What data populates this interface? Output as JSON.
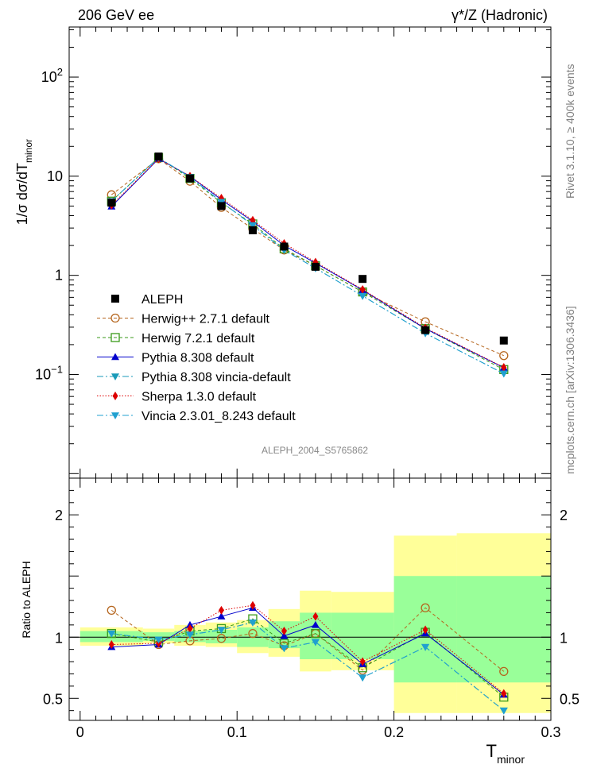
{
  "header": {
    "left": "206 GeV ee",
    "right": "γ*/Z (Hadronic)"
  },
  "side": {
    "rivet": "Rivet 3.1.10, ≥ 400k events",
    "source": "mcplots.cern.ch [arXiv:1306.3436]"
  },
  "analysis_id": "ALEPH_2004_S5765862",
  "colors": {
    "data": "#000000",
    "herwigpp": "#b5651d",
    "herwig7": "#3a9a1a",
    "pythia": "#0000cc",
    "pythia_vincia": "#1a9ab8",
    "sherpa": "#dd0000",
    "vincia": "#20a0d0",
    "band_outer": "#ffff99",
    "band_inner": "#99ff99"
  },
  "chart_data": [
    {
      "type": "line",
      "panel": "main",
      "ylabel": "1/σ  dσ/dT",
      "ylabel_sub": "minor",
      "yscale": "log",
      "ylim": [
        0.009,
        320
      ],
      "xlim": [
        -0.007,
        0.3
      ],
      "y_ticks": [
        {
          "value": 0.1,
          "base": "10",
          "exp": "−1"
        },
        {
          "value": 1,
          "base": "1",
          "exp": ""
        },
        {
          "value": 10,
          "base": "10",
          "exp": ""
        },
        {
          "value": 100,
          "base": "10",
          "exp": "2"
        }
      ],
      "x": [
        0.02,
        0.05,
        0.07,
        0.09,
        0.11,
        0.13,
        0.15,
        0.18,
        0.22,
        0.27
      ],
      "data_series": {
        "name": "ALEPH",
        "values": [
          5.4,
          15.8,
          9.5,
          5.0,
          2.85,
          1.95,
          1.22,
          0.92,
          0.28,
          0.22
        ]
      },
      "series": [
        {
          "name": "Herwig++ 2.7.1 default",
          "key": "herwigpp",
          "marker": "open-circle",
          "dash": "4,3",
          "values": [
            6.5,
            15.0,
            8.9,
            4.85,
            2.95,
            1.8,
            1.25,
            0.68,
            0.34,
            0.155
          ]
        },
        {
          "name": "Herwig 7.2.1 default",
          "key": "herwig7",
          "marker": "open-square",
          "dash": "4,3",
          "values": [
            5.6,
            15.4,
            9.5,
            5.4,
            3.3,
            1.85,
            1.25,
            0.68,
            0.29,
            0.112
          ]
        },
        {
          "name": "Pythia 8.308 default",
          "key": "pythia",
          "marker": "triangle-up",
          "dash": "",
          "values": [
            4.95,
            15.0,
            10.0,
            5.8,
            3.5,
            2.0,
            1.33,
            0.71,
            0.29,
            0.117
          ]
        },
        {
          "name": "Pythia 8.308 vincia-default",
          "key": "pythia_vincia",
          "marker": "triangle-down",
          "dash": "8,3,2,3",
          "values": [
            5.6,
            15.4,
            9.8,
            5.5,
            3.2,
            1.8,
            1.18,
            0.62,
            0.26,
            0.102
          ]
        },
        {
          "name": "Sherpa 1.3.0 default",
          "key": "sherpa",
          "marker": "diamond",
          "dash": "1.5,2",
          "values": [
            5.1,
            15.0,
            10.0,
            6.0,
            3.6,
            2.1,
            1.36,
            0.72,
            0.295,
            0.118
          ]
        },
        {
          "name": "Vincia 2.3.01_8.243 default",
          "key": "vincia",
          "marker": "triangle-down",
          "dash": "8,3,2,3",
          "values": [
            5.6,
            15.4,
            9.8,
            5.5,
            3.2,
            1.8,
            1.18,
            0.62,
            0.26,
            0.102
          ]
        }
      ]
    },
    {
      "type": "line",
      "panel": "ratio",
      "ylabel": "Ratio to ALEPH",
      "xlabel": "T",
      "xlabel_sub": "minor",
      "ylim": [
        0.32,
        2.3
      ],
      "xlim": [
        -0.007,
        0.3
      ],
      "y_ticks": [
        0.5,
        1,
        2
      ],
      "y_tick_labels": [
        "0.5",
        "1",
        "2"
      ],
      "x_ticks": [
        0,
        0.1,
        0.2,
        0.3
      ],
      "x_tick_labels": [
        "0",
        "0.1",
        "0.2",
        "0.3"
      ],
      "x": [
        0.02,
        0.05,
        0.07,
        0.09,
        0.11,
        0.13,
        0.15,
        0.18,
        0.22,
        0.27
      ],
      "bin_edges": [
        0,
        0.04,
        0.06,
        0.08,
        0.1,
        0.12,
        0.14,
        0.16,
        0.2,
        0.24,
        0.3
      ],
      "band_outer": [
        [
          0.93,
          1.08
        ],
        [
          0.95,
          1.07
        ],
        [
          0.93,
          1.1
        ],
        [
          0.92,
          1.12
        ],
        [
          0.87,
          1.14
        ],
        [
          0.84,
          1.23
        ],
        [
          0.72,
          1.38
        ],
        [
          0.73,
          1.37
        ],
        [
          0.38,
          1.83
        ],
        [
          0.38,
          1.85
        ]
      ],
      "band_inner": [
        [
          0.96,
          1.05
        ],
        [
          0.97,
          1.04
        ],
        [
          0.96,
          1.05
        ],
        [
          0.95,
          1.06
        ],
        [
          0.92,
          1.08
        ],
        [
          0.91,
          1.13
        ],
        [
          0.82,
          1.2
        ],
        [
          0.82,
          1.2
        ],
        [
          0.63,
          1.5
        ],
        [
          0.63,
          1.5
        ]
      ],
      "series": [
        {
          "name": "Herwig++ 2.7.1 default",
          "key": "herwigpp",
          "marker": "open-circle",
          "dash": "4,3",
          "values": [
            1.22,
            0.94,
            0.97,
            0.99,
            1.03,
            0.93,
            1.03,
            0.73,
            1.24,
            0.72
          ]
        },
        {
          "name": "Herwig 7.2.1 default",
          "key": "herwig7",
          "marker": "open-square",
          "dash": "4,3",
          "values": [
            1.03,
            0.96,
            1.05,
            1.07,
            1.15,
            0.95,
            1.03,
            0.75,
            1.04,
            0.51
          ]
        },
        {
          "name": "Pythia 8.308 default",
          "key": "pythia",
          "marker": "triangle-up",
          "dash": "",
          "values": [
            0.92,
            0.94,
            1.1,
            1.17,
            1.24,
            1.01,
            1.1,
            0.78,
            1.03,
            0.53
          ]
        },
        {
          "name": "Pythia 8.308 vincia-default",
          "key": "pythia_vincia",
          "marker": "triangle-down",
          "dash": "8,3,2,3",
          "values": [
            1.03,
            0.98,
            1.02,
            1.06,
            1.12,
            0.91,
            0.96,
            0.67,
            0.92,
            0.4
          ]
        },
        {
          "name": "Sherpa 1.3.0 default",
          "key": "sherpa",
          "marker": "diamond",
          "dash": "1.5,2",
          "values": [
            0.94,
            0.95,
            1.07,
            1.22,
            1.26,
            1.05,
            1.17,
            0.8,
            1.06,
            0.54
          ]
        },
        {
          "name": "Vincia 2.3.01_8.243 default",
          "key": "vincia",
          "marker": "triangle-down",
          "dash": "8,3,2,3",
          "values": [
            1.03,
            0.98,
            1.02,
            1.06,
            1.12,
            0.91,
            0.96,
            0.67,
            0.92,
            0.4
          ]
        }
      ]
    }
  ]
}
